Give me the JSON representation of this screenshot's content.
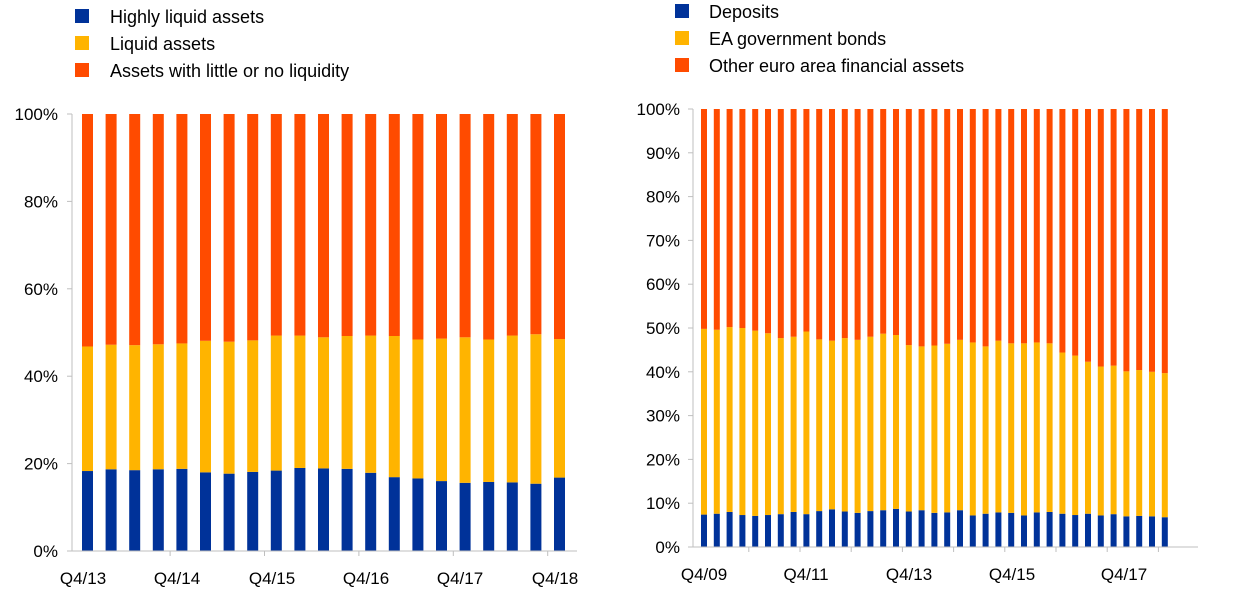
{
  "chart_data": [
    {
      "type": "bar",
      "stacked": true,
      "ylim": [
        0,
        100
      ],
      "yticks": [
        "0%",
        "20%",
        "40%",
        "60%",
        "80%",
        "100%"
      ],
      "grid": false,
      "legend_position": "top-left",
      "x_tick_labels": [
        "Q4/13",
        "Q4/14",
        "Q4/15",
        "Q4/16",
        "Q4/17",
        "Q4/18"
      ],
      "categories": [
        "Q4/13",
        "Q1/14",
        "Q2/14",
        "Q3/14",
        "Q4/14",
        "Q1/15",
        "Q2/15",
        "Q3/15",
        "Q4/15",
        "Q1/16",
        "Q2/16",
        "Q3/16",
        "Q4/16",
        "Q1/17",
        "Q2/17",
        "Q3/17",
        "Q4/17",
        "Q1/18",
        "Q2/18",
        "Q3/18",
        "Q4/18"
      ],
      "series": [
        {
          "name": "Highly liquid assets",
          "color": "#003299",
          "values": [
            18.3,
            18.7,
            18.5,
            18.7,
            18.8,
            18.0,
            17.7,
            18.1,
            18.4,
            19.0,
            18.9,
            18.8,
            17.9,
            16.9,
            16.6,
            16.0,
            15.6,
            15.8,
            15.7,
            15.4,
            16.8
          ]
        },
        {
          "name": "Liquid assets",
          "color": "#ffb400",
          "values": [
            28.5,
            28.5,
            28.6,
            28.6,
            28.7,
            30.1,
            30.2,
            30.1,
            30.9,
            30.3,
            30.0,
            30.4,
            31.4,
            32.3,
            31.8,
            32.6,
            33.3,
            32.6,
            33.6,
            34.2,
            31.7
          ]
        },
        {
          "name": "Assets with little or no liquidity",
          "color": "#ff4b00",
          "values": [
            53.2,
            52.8,
            52.9,
            52.7,
            52.5,
            51.9,
            52.1,
            51.8,
            50.7,
            50.7,
            51.1,
            50.8,
            50.7,
            50.8,
            51.6,
            51.4,
            51.1,
            51.6,
            50.7,
            50.4,
            51.5
          ]
        }
      ]
    },
    {
      "type": "bar",
      "stacked": true,
      "ylim": [
        0,
        100
      ],
      "yticks": [
        "0%",
        "10%",
        "20%",
        "30%",
        "40%",
        "50%",
        "60%",
        "70%",
        "80%",
        "90%",
        "100%"
      ],
      "grid": false,
      "legend_position": "top-left",
      "x_tick_labels": [
        "Q4/09",
        "Q4/11",
        "Q4/13",
        "Q4/15",
        "Q4/17"
      ],
      "categories": [
        "Q4/09",
        "Q1/10",
        "Q2/10",
        "Q3/10",
        "Q4/10",
        "Q1/11",
        "Q2/11",
        "Q3/11",
        "Q4/11",
        "Q1/12",
        "Q2/12",
        "Q3/12",
        "Q4/12",
        "Q1/13",
        "Q2/13",
        "Q3/13",
        "Q4/13",
        "Q1/14",
        "Q2/14",
        "Q3/14",
        "Q4/14",
        "Q1/15",
        "Q2/15",
        "Q3/15",
        "Q4/15",
        "Q1/16",
        "Q2/16",
        "Q3/16",
        "Q4/16",
        "Q1/17",
        "Q2/17",
        "Q3/17",
        "Q4/17",
        "Q1/18",
        "Q2/18",
        "Q3/18",
        "Q4/18"
      ],
      "series": [
        {
          "name": "Deposits",
          "color": "#003299",
          "values": [
            7.4,
            7.6,
            8.0,
            7.3,
            7.1,
            7.3,
            7.5,
            8.0,
            7.5,
            8.2,
            8.6,
            8.1,
            7.8,
            8.2,
            8.4,
            8.7,
            8.1,
            8.4,
            7.8,
            7.9,
            8.4,
            7.2,
            7.6,
            7.9,
            7.8,
            7.2,
            7.9,
            8.0,
            7.6,
            7.3,
            7.6,
            7.2,
            7.5,
            7.0,
            7.1,
            7.0,
            6.8
          ]
        },
        {
          "name": "EA government bonds",
          "color": "#ffb400",
          "values": [
            42.4,
            42.0,
            42.2,
            42.7,
            42.3,
            41.5,
            40.2,
            40.0,
            41.7,
            39.2,
            38.5,
            39.6,
            39.5,
            39.8,
            40.3,
            39.7,
            38.0,
            37.4,
            38.2,
            38.5,
            38.9,
            39.5,
            38.2,
            39.2,
            38.7,
            39.3,
            38.8,
            38.5,
            36.8,
            36.4,
            34.7,
            34.0,
            33.9,
            33.1,
            33.3,
            33.0,
            32.9
          ]
        },
        {
          "name": "Other euro area financial assets",
          "color": "#ff4b00",
          "values": [
            50.2,
            50.4,
            49.8,
            50.0,
            50.6,
            51.2,
            52.3,
            52.0,
            50.8,
            52.6,
            52.9,
            52.3,
            52.7,
            52.0,
            51.3,
            51.6,
            53.9,
            54.2,
            54.0,
            53.6,
            52.7,
            53.3,
            54.2,
            52.9,
            53.5,
            53.5,
            53.3,
            53.5,
            55.6,
            56.3,
            57.7,
            58.8,
            58.6,
            59.9,
            59.6,
            60.0,
            60.3
          ]
        }
      ]
    }
  ]
}
